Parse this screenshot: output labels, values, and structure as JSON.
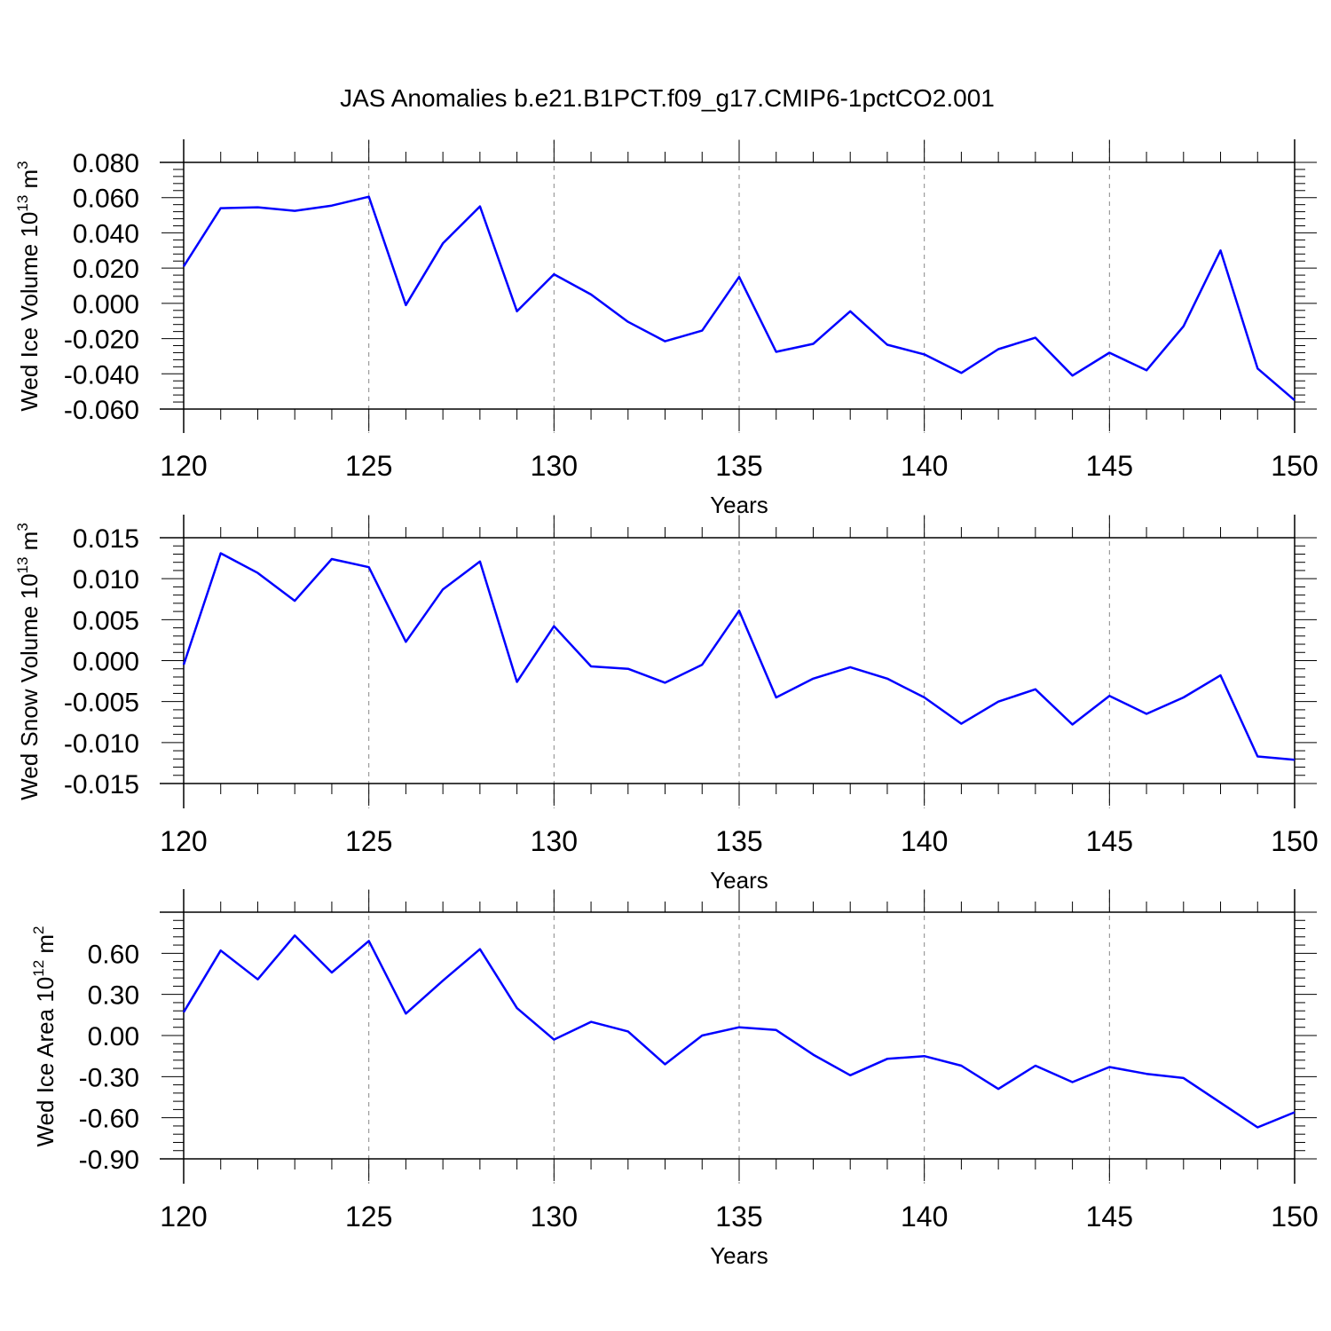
{
  "title": "JAS Anomalies b.e21.B1PCT.f09_g17.CMIP6-1pctCO2.001",
  "colors": {
    "line": "#0000ff",
    "axis": "#000000",
    "grid": "#888888"
  },
  "chart_data": [
    {
      "type": "line",
      "ylabel": "Wed Ice Volume 10",
      "ylabel_exp": "13",
      "ylabel_unit": "m",
      "ylabel_unit_exp": "3",
      "xlabel": "Years",
      "xlim": [
        120,
        150
      ],
      "ylim": [
        -0.06,
        0.08
      ],
      "x_ticks": [
        120,
        125,
        130,
        135,
        140,
        145,
        150
      ],
      "x_tick_labels": [
        "120",
        "125",
        "130",
        "135",
        "140",
        "145",
        "150"
      ],
      "y_ticks": [
        -0.06,
        -0.04,
        -0.02,
        0.0,
        0.02,
        0.04,
        0.06,
        0.08
      ],
      "y_tick_labels": [
        "-0.060",
        "-0.040",
        "-0.020",
        "0.000",
        "0.020",
        "0.040",
        "0.060",
        "0.080"
      ],
      "x": [
        120,
        121,
        122,
        123,
        124,
        125,
        126,
        127,
        128,
        129,
        130,
        131,
        132,
        133,
        134,
        135,
        136,
        137,
        138,
        139,
        140,
        141,
        142,
        143,
        144,
        145,
        146,
        147,
        148,
        149,
        150
      ],
      "values": [
        0.021,
        0.054,
        0.0545,
        0.0525,
        0.0555,
        0.0605,
        -0.001,
        0.034,
        0.055,
        -0.0045,
        0.0165,
        0.005,
        -0.0105,
        -0.0215,
        -0.0155,
        0.015,
        -0.0275,
        -0.023,
        -0.0045,
        -0.0235,
        -0.029,
        -0.0395,
        -0.026,
        -0.0195,
        -0.041,
        -0.028,
        -0.038,
        -0.013,
        0.03,
        -0.037,
        -0.055
      ]
    },
    {
      "type": "line",
      "ylabel": "Wed Snow Volume 10",
      "ylabel_exp": "13",
      "ylabel_unit": "m",
      "ylabel_unit_exp": "3",
      "xlabel": "Years",
      "xlim": [
        120,
        150
      ],
      "ylim": [
        -0.015,
        0.015
      ],
      "x_ticks": [
        120,
        125,
        130,
        135,
        140,
        145,
        150
      ],
      "x_tick_labels": [
        "120",
        "125",
        "130",
        "135",
        "140",
        "145",
        "150"
      ],
      "y_ticks": [
        -0.015,
        -0.01,
        -0.005,
        0.0,
        0.005,
        0.01,
        0.015
      ],
      "y_tick_labels": [
        "-0.015",
        "-0.010",
        "-0.005",
        "0.000",
        "0.005",
        "0.010",
        "0.015"
      ],
      "x": [
        120,
        121,
        122,
        123,
        124,
        125,
        126,
        127,
        128,
        129,
        130,
        131,
        132,
        133,
        134,
        135,
        136,
        137,
        138,
        139,
        140,
        141,
        142,
        143,
        144,
        145,
        146,
        147,
        148,
        149,
        150
      ],
      "values": [
        -0.0005,
        0.0131,
        0.0107,
        0.0073,
        0.0124,
        0.0114,
        0.0023,
        0.0087,
        0.0121,
        -0.0026,
        0.0042,
        -0.0007,
        -0.001,
        -0.0027,
        -0.0005,
        0.0061,
        -0.0045,
        -0.0022,
        -0.0008,
        -0.0022,
        -0.0045,
        -0.0077,
        -0.005,
        -0.0035,
        -0.0078,
        -0.0043,
        -0.0065,
        -0.0045,
        -0.0018,
        -0.0117,
        -0.0121
      ]
    },
    {
      "type": "line",
      "ylabel": "Wed Ice Area 10",
      "ylabel_exp": "12",
      "ylabel_unit": "m",
      "ylabel_unit_exp": "2",
      "xlabel": "Years",
      "xlim": [
        120,
        150
      ],
      "ylim": [
        -0.9,
        0.9
      ],
      "x_ticks": [
        120,
        125,
        130,
        135,
        140,
        145,
        150
      ],
      "x_tick_labels": [
        "120",
        "125",
        "130",
        "135",
        "140",
        "145",
        "150"
      ],
      "y_ticks": [
        -0.9,
        -0.6,
        -0.3,
        0.0,
        0.3,
        0.6
      ],
      "y_tick_labels": [
        "-0.90",
        "-0.60",
        "-0.30",
        "0.00",
        "0.30",
        "0.60"
      ],
      "x": [
        120,
        121,
        122,
        123,
        124,
        125,
        126,
        127,
        128,
        129,
        130,
        131,
        132,
        133,
        134,
        135,
        136,
        137,
        138,
        139,
        140,
        141,
        142,
        143,
        144,
        145,
        146,
        147,
        148,
        149,
        150
      ],
      "values": [
        0.17,
        0.62,
        0.41,
        0.73,
        0.46,
        0.69,
        0.16,
        0.4,
        0.63,
        0.2,
        -0.03,
        0.1,
        0.03,
        -0.21,
        0.0,
        0.06,
        0.04,
        -0.14,
        -0.29,
        -0.17,
        -0.15,
        -0.22,
        -0.39,
        -0.22,
        -0.34,
        -0.23,
        -0.28,
        -0.31,
        -0.49,
        -0.67,
        -0.56
      ]
    }
  ]
}
